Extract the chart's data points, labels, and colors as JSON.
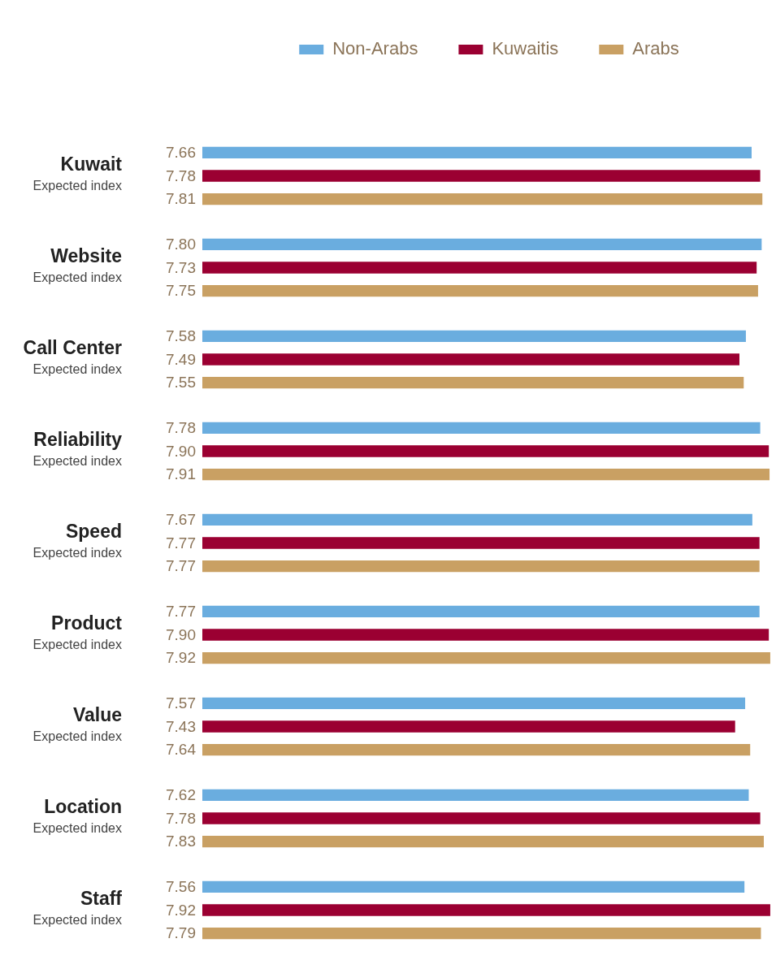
{
  "chart_data": {
    "type": "bar",
    "orientation": "horizontal",
    "categories": [
      "Kuwait\nExpected index",
      "Website\nExpected index",
      "Call Center\nExpected index",
      "Reliability\nExpected index",
      "Speed\nExpected index",
      "Product\nExpected index",
      "Value\nExpected index",
      "Location\nExpected index",
      "Staff\nExpected index"
    ],
    "series": [
      {
        "name": "Non-Arabs",
        "color": "#6aaddf",
        "values": [
          7.66,
          7.8,
          7.58,
          7.78,
          7.67,
          7.77,
          7.57,
          7.62,
          7.56
        ],
        "value_labels": [
          "7.66",
          "7.80",
          "7.58",
          "7.78",
          "7.67",
          "7.77",
          "7.57",
          "7.62",
          "7.56"
        ]
      },
      {
        "name": "Kuwaitis",
        "color": "#9b0032",
        "values": [
          7.78,
          7.73,
          7.49,
          7.9,
          7.77,
          7.9,
          7.43,
          7.78,
          7.92
        ],
        "value_labels": [
          "7.78",
          "7.73",
          "7.49",
          "7.90",
          "7.77",
          "7.90",
          "7.43",
          "7.78",
          "7.92"
        ]
      },
      {
        "name": "Arabs",
        "color": "#c9a063",
        "values": [
          7.81,
          7.75,
          7.55,
          7.91,
          7.77,
          7.92,
          7.64,
          7.83,
          7.79
        ],
        "value_labels": [
          "7.81",
          "7.75",
          "7.55",
          "7.91",
          "7.77",
          "7.92",
          "7.64",
          "7.83",
          "7.79"
        ]
      }
    ],
    "legend": "top"
  }
}
